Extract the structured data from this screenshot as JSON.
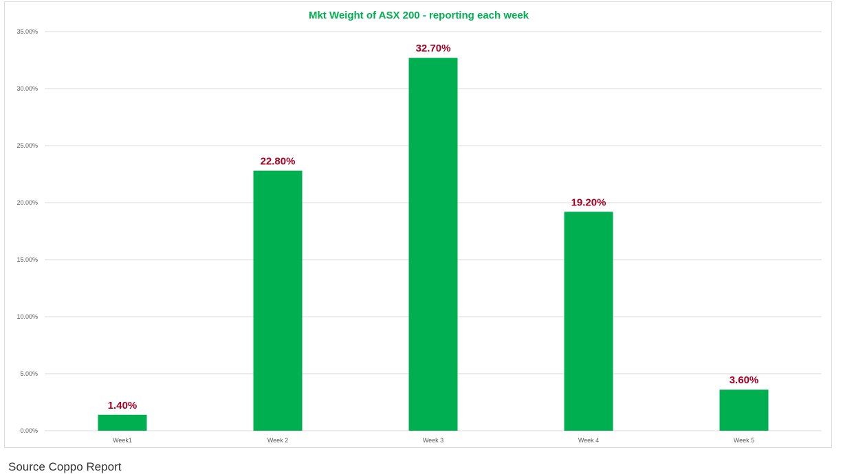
{
  "source_note": "Source Coppo Report",
  "colors": {
    "bar": "#00b050",
    "title": "#00b050",
    "data_label": "#a50021",
    "grid": "#d9d9d9",
    "axis_text": "#595959"
  },
  "chart_data": {
    "type": "bar",
    "title": "Mkt Weight of ASX 200 - reporting each week",
    "xlabel": "",
    "ylabel": "",
    "categories": [
      "Week1",
      "Week 2",
      "Week 3",
      "Week 4",
      "Week 5"
    ],
    "values": [
      1.4,
      22.8,
      32.7,
      19.2,
      3.6
    ],
    "data_labels": [
      "1.40%",
      "22.80%",
      "32.70%",
      "19.20%",
      "3.60%"
    ],
    "ylim": [
      0,
      35
    ],
    "yticks": [
      0,
      5,
      10,
      15,
      20,
      25,
      30,
      35
    ],
    "ytick_labels": [
      "0.00%",
      "5.00%",
      "10.00%",
      "15.00%",
      "20.00%",
      "25.00%",
      "30.00%",
      "35.00%"
    ],
    "grid": true,
    "legend": "none"
  }
}
